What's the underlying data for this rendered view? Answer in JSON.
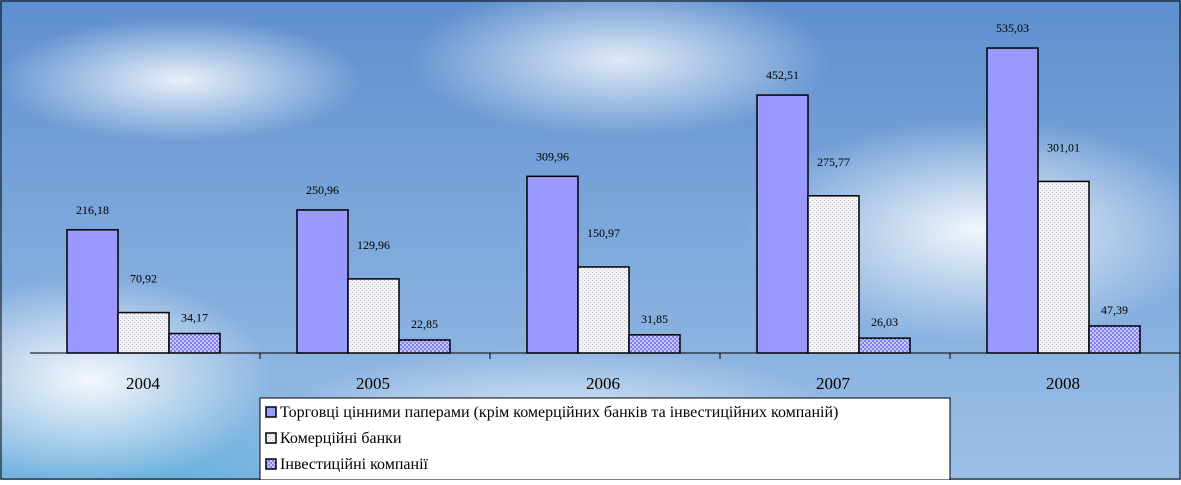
{
  "chart_data": {
    "type": "bar",
    "categories": [
      "2004",
      "2005",
      "2006",
      "2007",
      "2008"
    ],
    "series": [
      {
        "name": "Торговці цінними паперами (крім комерційних банків та інвестиційних компаній)",
        "color": "#9999ff",
        "values": [
          216.18,
          250.96,
          309.96,
          452.51,
          535.03
        ],
        "value_labels": [
          "216,18",
          "250,96",
          "309,96",
          "452,51",
          "535,03"
        ]
      },
      {
        "name": "Комерційні банки",
        "color": "#f3f3f8",
        "values": [
          70.92,
          129.96,
          150.97,
          275.77,
          301.01
        ],
        "value_labels": [
          "70,92",
          "129,96",
          "150,97",
          "275,77",
          "301,01"
        ]
      },
      {
        "name": "Інвестиційні компанії",
        "color": "#a0a0f8",
        "values": [
          34.17,
          22.85,
          31.85,
          26.03,
          47.39
        ],
        "value_labels": [
          "34,17",
          "22,85",
          "31,85",
          "26,03",
          "47,39"
        ]
      }
    ]
  }
}
